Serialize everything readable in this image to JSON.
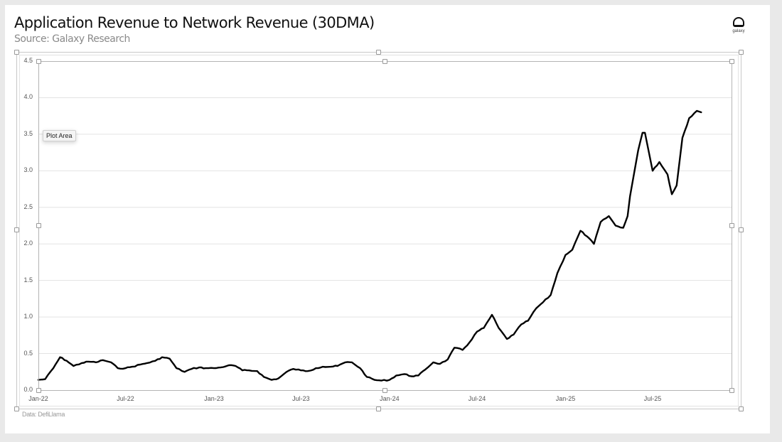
{
  "header": {
    "title": "Application Revenue to Network Revenue (30DMA)",
    "subtitle": "Source: Galaxy Research"
  },
  "logo": {
    "text": "galaxy",
    "icon": "galaxy-logo-icon"
  },
  "footnote": "Data: DefiLlama",
  "tooltip": "Plot Area",
  "colors": {
    "line": "#000000",
    "gridline": "#e3e3e3",
    "background": "#ffffff",
    "page_background": "#e9e9e9"
  },
  "chart_data": {
    "type": "line",
    "title": "Application Revenue to Network Revenue (30DMA)",
    "subtitle": "Source: Galaxy Research",
    "xlabel": "",
    "ylabel": "",
    "ylim": [
      0,
      4.5
    ],
    "yticks": [
      "0.0",
      "0.5",
      "1.0",
      "1.5",
      "2.0",
      "2.5",
      "3.0",
      "3.5",
      "4.0",
      "4.5"
    ],
    "xticks": [
      "Jan-22",
      "Jul-22",
      "Jan-23",
      "Jul-23",
      "Jan-24",
      "Jul-24",
      "Jan-25",
      "Jul-25"
    ],
    "grid": true,
    "legend": null,
    "annotation": "Data: DefiLlama",
    "series": [
      {
        "name": "Application Revenue / Network Revenue (30DMA)",
        "x": [
          "2022-01-01",
          "2022-01-15",
          "2022-02-01",
          "2022-02-15",
          "2022-03-01",
          "2022-03-15",
          "2022-04-01",
          "2022-04-15",
          "2022-05-01",
          "2022-05-15",
          "2022-06-01",
          "2022-06-15",
          "2022-07-01",
          "2022-07-15",
          "2022-08-01",
          "2022-08-15",
          "2022-09-01",
          "2022-09-15",
          "2022-10-01",
          "2022-10-15",
          "2022-11-01",
          "2022-11-15",
          "2022-12-01",
          "2022-12-15",
          "2023-01-01",
          "2023-01-15",
          "2023-02-01",
          "2023-02-15",
          "2023-03-01",
          "2023-03-15",
          "2023-04-01",
          "2023-04-15",
          "2023-05-01",
          "2023-05-15",
          "2023-06-01",
          "2023-06-15",
          "2023-07-01",
          "2023-07-15",
          "2023-08-01",
          "2023-08-15",
          "2023-09-01",
          "2023-09-15",
          "2023-10-01",
          "2023-10-15",
          "2023-11-01",
          "2023-11-15",
          "2023-12-01",
          "2023-12-15",
          "2024-01-01",
          "2024-01-15",
          "2024-02-01",
          "2024-02-15",
          "2024-03-01",
          "2024-03-15",
          "2024-04-01",
          "2024-04-15",
          "2024-05-01",
          "2024-05-15",
          "2024-06-01",
          "2024-06-15",
          "2024-07-01",
          "2024-07-15",
          "2024-08-01",
          "2024-08-15",
          "2024-09-01",
          "2024-09-15",
          "2024-10-01",
          "2024-10-15",
          "2024-11-01",
          "2024-11-15",
          "2024-12-01",
          "2024-12-15",
          "2025-01-01",
          "2025-01-15",
          "2025-02-01",
          "2025-02-15",
          "2025-03-01",
          "2025-03-15",
          "2025-04-01",
          "2025-04-15",
          "2025-05-01",
          "2025-05-10",
          "2025-05-15",
          "2025-06-01",
          "2025-06-10",
          "2025-06-15",
          "2025-07-01",
          "2025-07-15",
          "2025-08-01",
          "2025-08-10",
          "2025-08-20",
          "2025-09-01",
          "2025-09-15",
          "2025-10-01",
          "2025-10-10"
        ],
        "values": [
          0.14,
          0.15,
          0.3,
          0.45,
          0.4,
          0.33,
          0.37,
          0.39,
          0.38,
          0.41,
          0.38,
          0.3,
          0.3,
          0.32,
          0.35,
          0.37,
          0.4,
          0.45,
          0.43,
          0.3,
          0.25,
          0.29,
          0.31,
          0.3,
          0.3,
          0.31,
          0.34,
          0.33,
          0.27,
          0.27,
          0.26,
          0.18,
          0.14,
          0.16,
          0.25,
          0.29,
          0.27,
          0.26,
          0.3,
          0.32,
          0.32,
          0.33,
          0.38,
          0.38,
          0.3,
          0.18,
          0.14,
          0.13,
          0.14,
          0.2,
          0.22,
          0.19,
          0.2,
          0.28,
          0.38,
          0.36,
          0.42,
          0.58,
          0.55,
          0.65,
          0.8,
          0.85,
          1.03,
          0.85,
          0.7,
          0.76,
          0.9,
          0.95,
          1.12,
          1.2,
          1.3,
          1.6,
          1.85,
          1.92,
          2.18,
          2.1,
          2.0,
          2.3,
          2.38,
          2.25,
          2.22,
          2.38,
          2.65,
          3.28,
          3.52,
          3.52,
          3.0,
          3.12,
          2.95,
          2.68,
          2.8,
          3.45,
          3.72,
          3.82,
          3.8
        ]
      }
    ]
  }
}
